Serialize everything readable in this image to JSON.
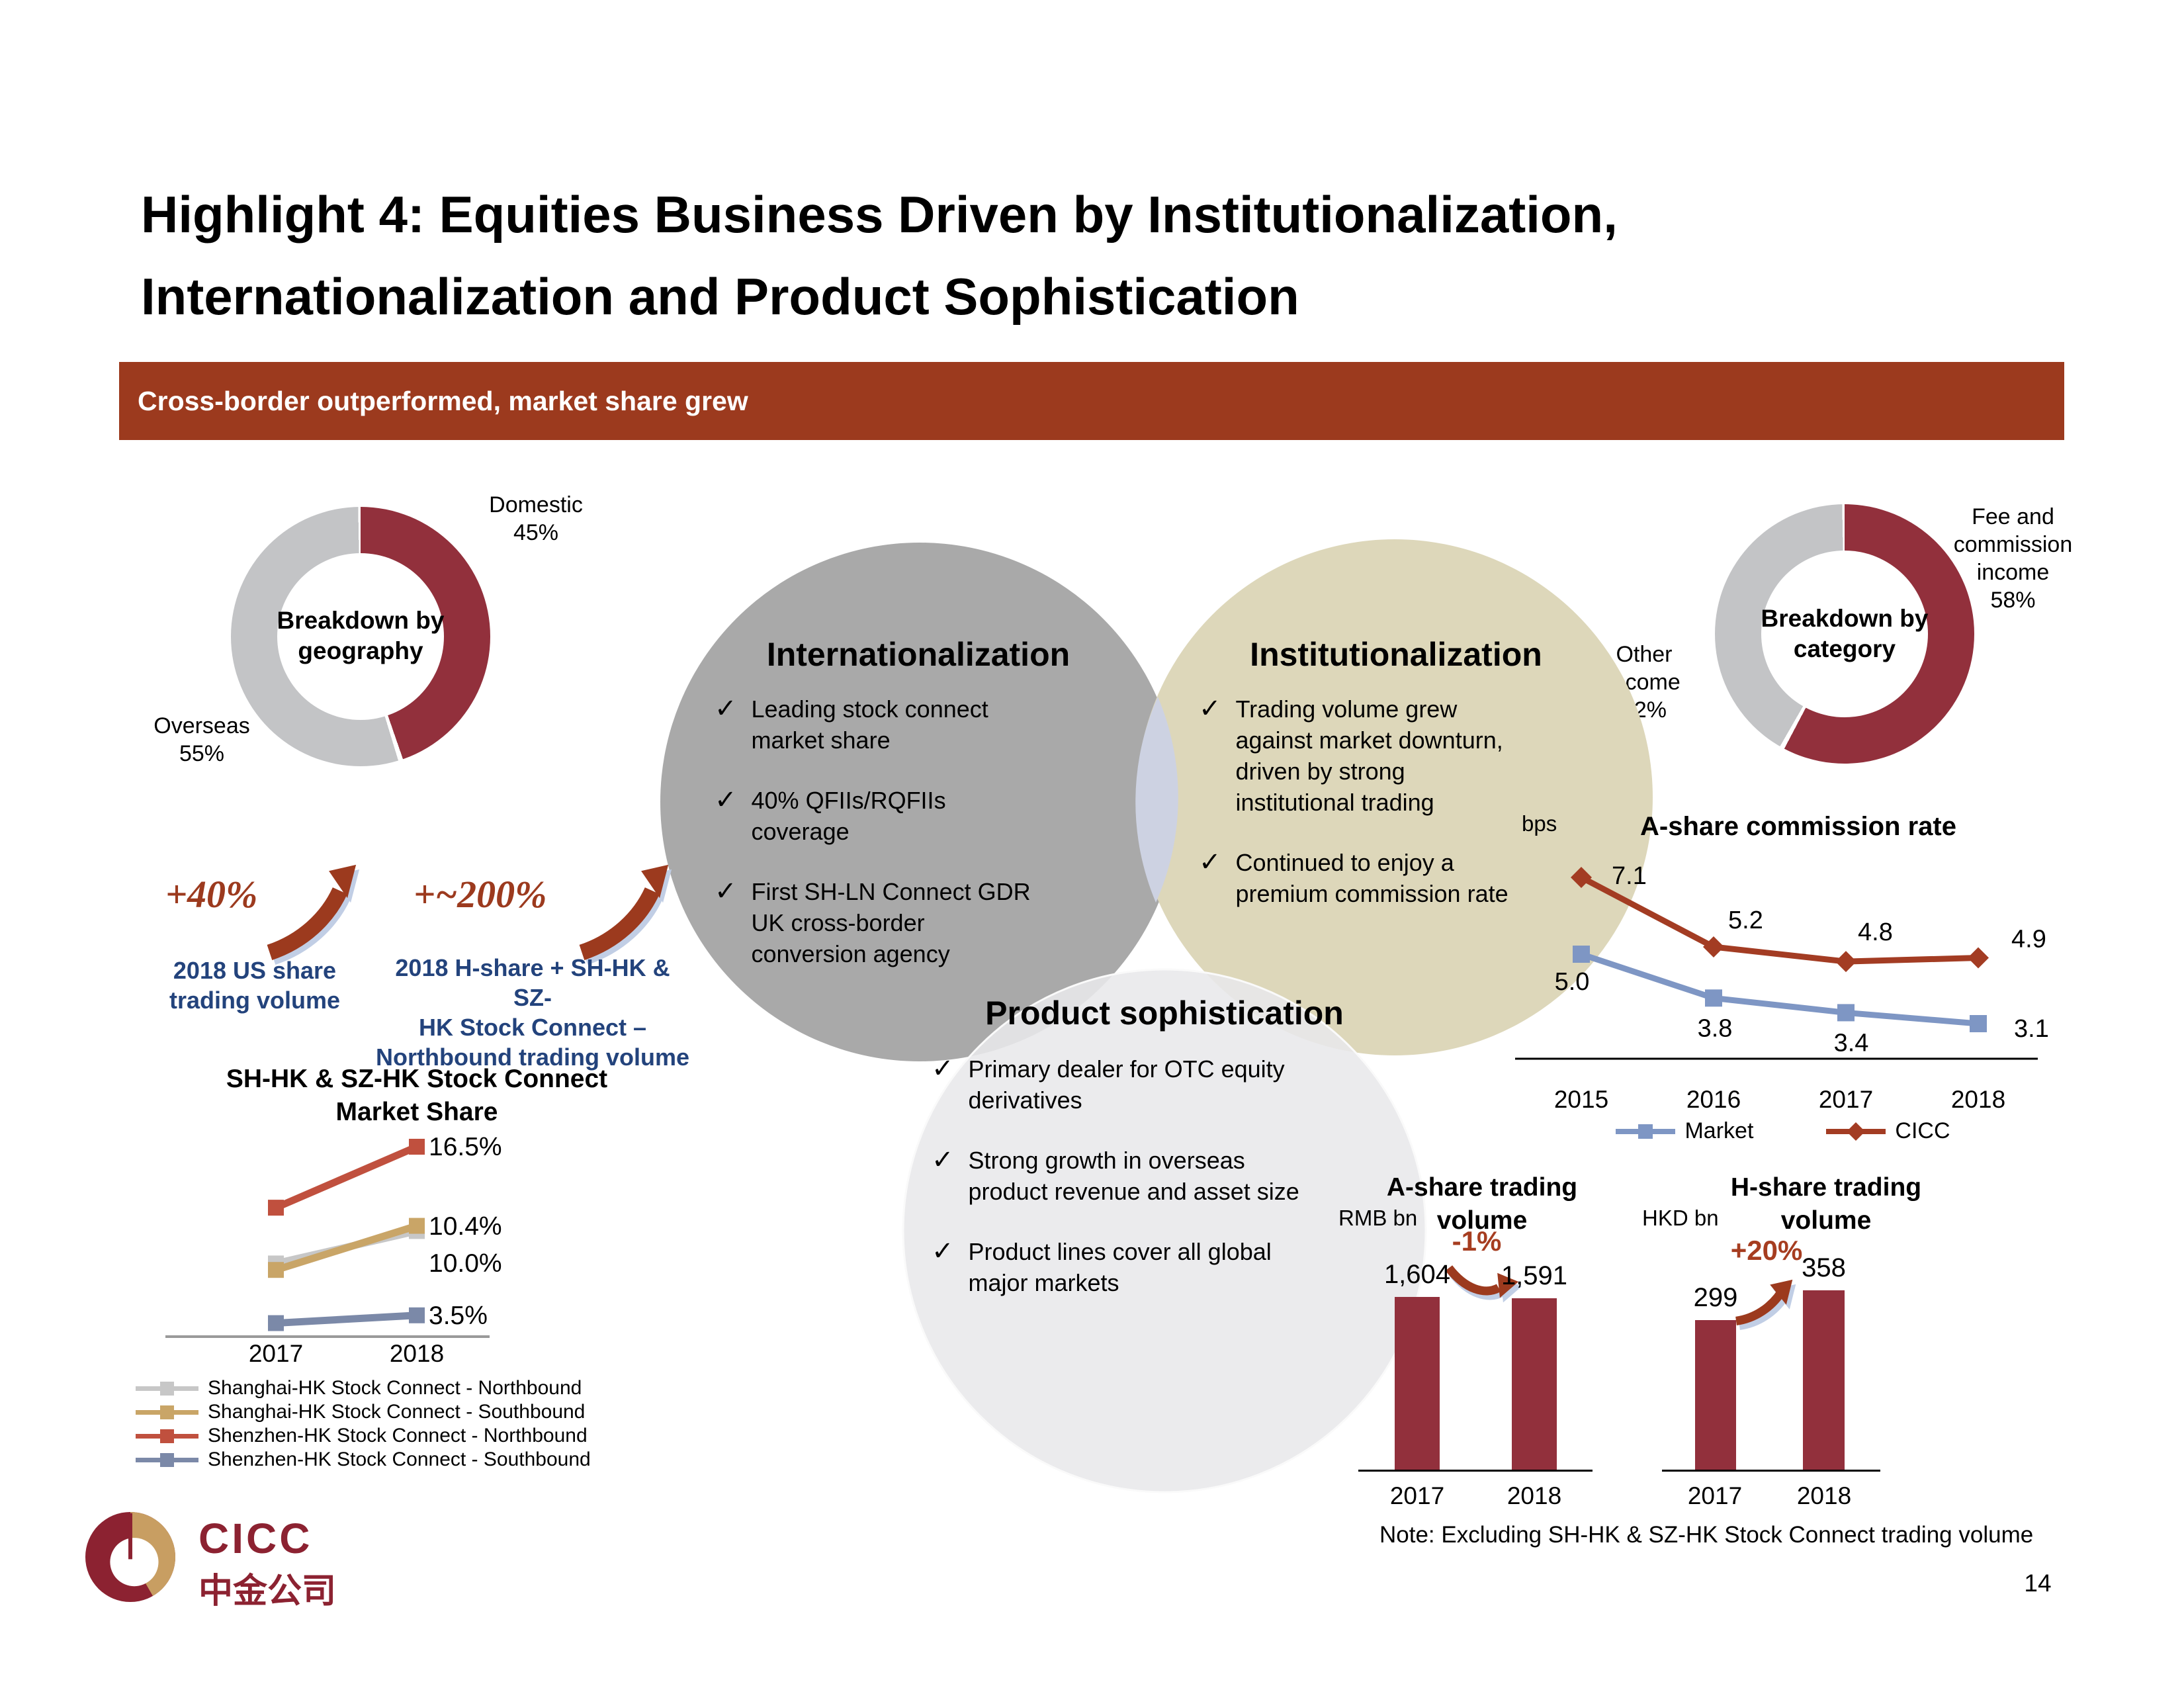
{
  "slide": {
    "title": "Highlight 4: Equities Business Driven by Institutionalization,\nInternationalization and Product Sophistication",
    "banner": "Cross-border outperformed, market share grew",
    "note": "Note: Excluding SH-HK & SZ-HK Stock Connect trading volume",
    "page_number": "14"
  },
  "logo": {
    "name": "CICC",
    "cn": "中金公司"
  },
  "venn": {
    "check": "✓",
    "internationalization": {
      "title": "Internationalization",
      "bullets": [
        "Leading stock connect\nmarket share",
        "40% QFIIs/RQFIIs\ncoverage",
        "First SH-LN Connect GDR\nUK cross-border\nconversion agency"
      ]
    },
    "institutionalization": {
      "title": "Institutionalization",
      "bullets": [
        "Trading volume grew\nagainst market downturn,\ndriven by strong\ninstitutional trading",
        "Continued to enjoy a\npremium commission rate"
      ]
    },
    "product": {
      "title": "Product sophistication",
      "bullets": [
        "Primary dealer for OTC equity\nderivatives",
        "Strong growth in overseas\nproduct revenue and asset size",
        "Product lines cover all global\nmajor markets"
      ]
    }
  },
  "callouts": [
    {
      "pct": "+40%",
      "label": "2018 US share\ntrading volume"
    },
    {
      "pct": "+~200%",
      "label": "2018 H-share + SH-HK & SZ-\nHK Stock Connect –\nNorthbound trading volume"
    }
  ],
  "chart_data": [
    {
      "type": "pie",
      "donut": true,
      "title": "Breakdown by geography",
      "center_label": "Breakdown by\ngeography",
      "labels": [
        "Domestic",
        "Overseas"
      ],
      "values": [
        45,
        55
      ],
      "slice_labels": [
        "Domestic\n45%",
        "Overseas\n55%"
      ],
      "colors": [
        "#92303c",
        "#c3c4c6"
      ]
    },
    {
      "type": "pie",
      "donut": true,
      "title": "Breakdown by category",
      "center_label": "Breakdown by\ncategory",
      "labels": [
        "Fee and commission income",
        "Other income"
      ],
      "values": [
        58,
        42
      ],
      "slice_labels": [
        "Fee and\ncommission\nincome\n58%",
        "Other\nincome\n42%"
      ],
      "colors": [
        "#92303c",
        "#c3c4c6"
      ]
    },
    {
      "type": "line",
      "title": "SH-HK & SZ-HK Stock Connect\nMarket Share",
      "unit": "%",
      "x": [
        2017,
        2018
      ],
      "legend_position": "bottom",
      "series": [
        {
          "name": "Shanghai-HK Stock Connect - Northbound",
          "color": "#c7c7c7",
          "values": [
            7.5,
            10.0
          ],
          "end_label": "10.0%"
        },
        {
          "name": "Shanghai-HK Stock Connect - Southbound",
          "color": "#c9a567",
          "values": [
            7.0,
            10.4
          ],
          "end_label": "10.4%"
        },
        {
          "name": "Shenzhen-HK Stock Connect - Northbound",
          "color": "#c0503e",
          "values": [
            11.8,
            16.5
          ],
          "end_label": "16.5%"
        },
        {
          "name": "Shenzhen-HK Stock Connect - Southbound",
          "color": "#7b89a8",
          "values": [
            2.9,
            3.5
          ],
          "end_label": "3.5%"
        }
      ]
    },
    {
      "type": "line",
      "title": "A-share commission rate",
      "unit": "bps",
      "x": [
        2015,
        2016,
        2017,
        2018
      ],
      "legend_position": "bottom",
      "series": [
        {
          "name": "Market",
          "color": "#7e96c4",
          "marker": "square",
          "values": [
            5.0,
            3.8,
            3.4,
            3.1
          ]
        },
        {
          "name": "CICC",
          "color": "#a33c23",
          "marker": "diamond",
          "values": [
            7.1,
            5.2,
            4.8,
            4.9
          ]
        }
      ]
    },
    {
      "type": "bar",
      "title": "A-share trading volume",
      "unit": "RMB bn",
      "categories": [
        "2017",
        "2018"
      ],
      "values": [
        1604,
        1591
      ],
      "value_labels": [
        "1,604",
        "1,591"
      ],
      "change": "-1%",
      "color": "#92303c"
    },
    {
      "type": "bar",
      "title": "H-share trading volume",
      "unit": "HKD bn",
      "categories": [
        "2017",
        "2018"
      ],
      "values": [
        299,
        358
      ],
      "value_labels": [
        "299",
        "358"
      ],
      "change": "+20%",
      "color": "#92303c"
    }
  ]
}
